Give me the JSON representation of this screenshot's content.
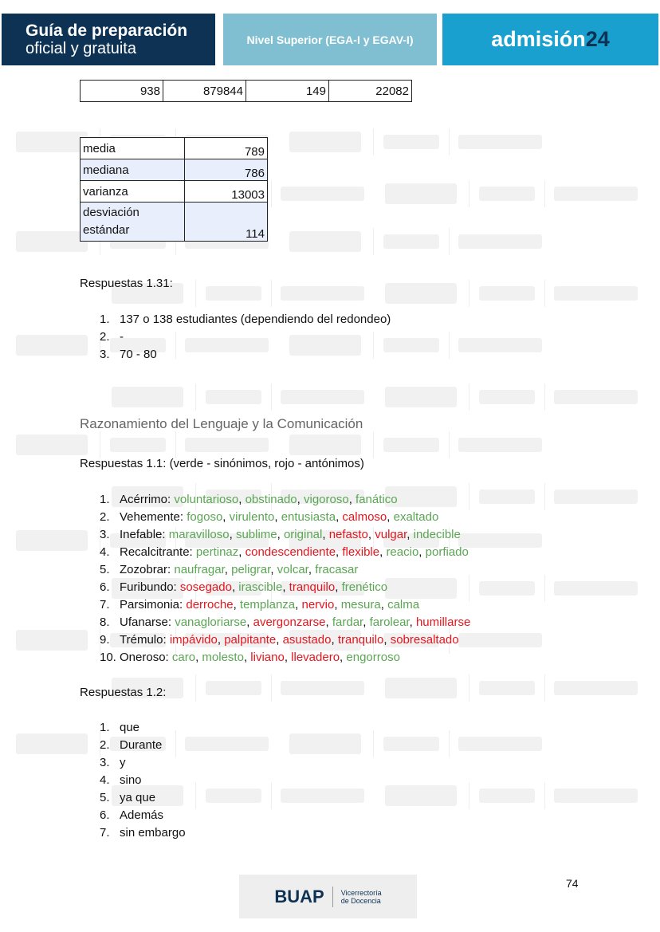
{
  "header": {
    "title_line1": "Guía de preparación",
    "title_line2": "oficial y gratuita",
    "level": "Nivel Superior (EGA-I y EGAV-I)",
    "brand": "admisión",
    "brand_year": "24"
  },
  "table1": [
    "938",
    "879844",
    "149",
    "22082"
  ],
  "table2": [
    {
      "label": "media",
      "value": "789"
    },
    {
      "label": "mediana",
      "value": "786"
    },
    {
      "label": "varianza",
      "value": "13003"
    },
    {
      "label": "desviación estándar",
      "value": "114"
    }
  ],
  "ans131": {
    "title": "Respuestas 1.31:",
    "items": [
      "137 o 138 estudiantes (dependiendo del redondeo)",
      "-",
      "70 - 80"
    ]
  },
  "section": "Razonamiento del Lenguaje y la Comunicación",
  "ans11": {
    "title": "Respuestas 1.1: (verde - sinónimos, rojo - antónimos)",
    "colors": {
      "synonym": "#5aa653",
      "antonym": "#e8141c"
    },
    "items": [
      {
        "term": "Acérrimo",
        "words": [
          [
            "voluntarioso",
            "g"
          ],
          [
            "obstinado",
            "g"
          ],
          [
            "vigoroso",
            "g"
          ],
          [
            "fanático",
            "g"
          ]
        ]
      },
      {
        "term": "Vehemente",
        "words": [
          [
            "fogoso",
            "g"
          ],
          [
            "virulento",
            "g"
          ],
          [
            "entusiasta",
            "g"
          ],
          [
            "calmoso",
            "r"
          ],
          [
            "exaltado",
            "g"
          ]
        ]
      },
      {
        "term": "Inefable",
        "words": [
          [
            "maravilloso",
            "g"
          ],
          [
            "sublime",
            "g"
          ],
          [
            "original",
            "g"
          ],
          [
            "nefasto",
            "r"
          ],
          [
            "vulgar",
            "r"
          ],
          [
            "indecible",
            "g"
          ]
        ]
      },
      {
        "term": "Recalcitrante",
        "words": [
          [
            "pertinaz",
            "g"
          ],
          [
            "condescendiente",
            "r"
          ],
          [
            "flexible",
            "r"
          ],
          [
            "reacio",
            "g"
          ],
          [
            "porfiado",
            "g"
          ]
        ]
      },
      {
        "term": "Zozobrar",
        "words": [
          [
            "naufragar",
            "g"
          ],
          [
            "peligrar",
            "g"
          ],
          [
            "volcar",
            "g"
          ],
          [
            "fracasar",
            "g"
          ]
        ]
      },
      {
        "term": "Furibundo",
        "words": [
          [
            "sosegado",
            "r"
          ],
          [
            "irascible",
            "g"
          ],
          [
            "tranquilo",
            "r"
          ],
          [
            "frenético",
            "g"
          ]
        ]
      },
      {
        "term": "Parsimonia",
        "words": [
          [
            "derroche",
            "r"
          ],
          [
            "templanza",
            "g"
          ],
          [
            "nervio",
            "r"
          ],
          [
            "mesura",
            "g"
          ],
          [
            "calma",
            "g"
          ]
        ]
      },
      {
        "term": "Ufanarse",
        "words": [
          [
            "vanagloriarse",
            "g"
          ],
          [
            "avergonzarse",
            "r"
          ],
          [
            "fardar",
            "g"
          ],
          [
            "farolear",
            "g"
          ],
          [
            "humillarse",
            "r"
          ]
        ]
      },
      {
        "term": "Trémulo",
        "words": [
          [
            "impávido",
            "r"
          ],
          [
            "palpitante",
            "r"
          ],
          [
            "asustado",
            "r"
          ],
          [
            "tranquilo",
            "r"
          ],
          [
            "sobresaltado",
            "r"
          ]
        ]
      },
      {
        "term": "Oneroso",
        "words": [
          [
            "caro",
            "g"
          ],
          [
            "molesto",
            "g"
          ],
          [
            "liviano",
            "r"
          ],
          [
            "llevadero",
            "r"
          ],
          [
            "engorroso",
            "g"
          ]
        ]
      }
    ]
  },
  "ans12": {
    "title": "Respuestas 1.2:",
    "items": [
      "que",
      "Durante",
      "y",
      "sino",
      "ya que",
      "Además",
      "sin embargo"
    ]
  },
  "page_number": "74",
  "footer": {
    "logo": "BUAP",
    "unit_line1": "Vicerrectoría",
    "unit_line2": "de Docencia"
  },
  "watermark": {
    "logo": "BUAP",
    "unit_line1": "Vicerrectoría",
    "unit_line2": "de Docencia",
    "guide_line1": "Guía de preparación",
    "guide_line2": "oficial y gratuita"
  }
}
